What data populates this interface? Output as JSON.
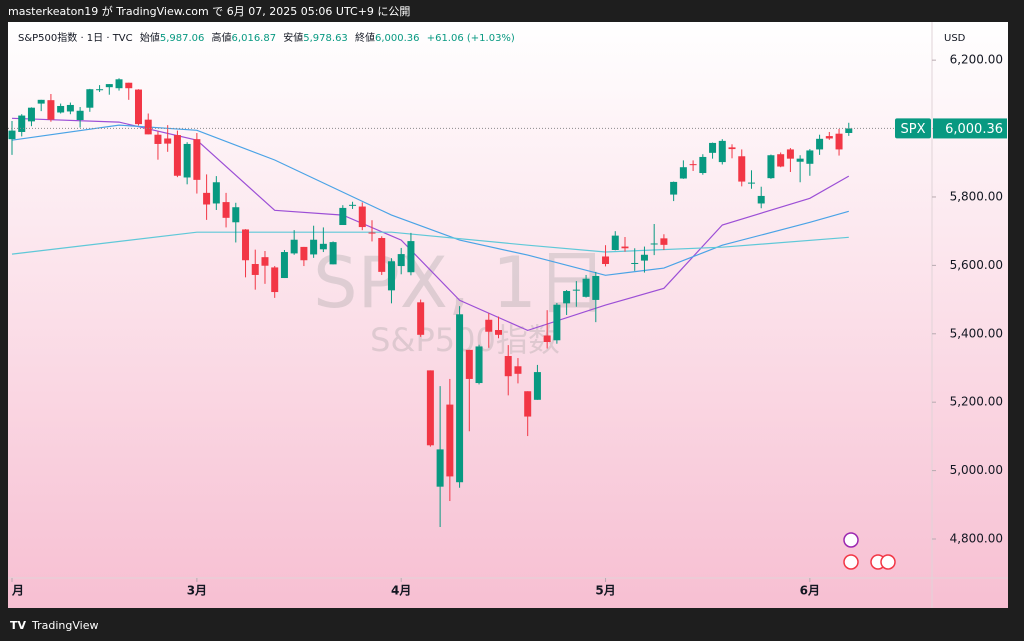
{
  "top_bar": "masterkeaton19 が TradingView.com で 6月 07, 2025 05:06 UTC+9 に公開",
  "footer": "TradingView",
  "chart_data": {
    "type": "candlestick",
    "currency": "USD",
    "watermark_title": "SPX, 1日",
    "watermark_subtitle": "S&P500指数",
    "header": {
      "symbol": "S&P500指数 · 1日 · TVC",
      "open_label": "始値",
      "open_value": "5,987.06",
      "high_label": "高値",
      "high_value": "6,016.87",
      "low_label": "安値",
      "low_value": "5,978.63",
      "close_label": "終値",
      "close_value": "6,000.36",
      "change": "+61.06 (+1.03%)"
    },
    "up_color": "#089981",
    "down_color": "#f23645",
    "open": [
      5969,
      5990,
      6021,
      6073,
      6083,
      6047,
      6050,
      6025,
      6061,
      6115,
      6121,
      6118,
      6134,
      6114,
      6026,
      5982,
      5971,
      5981,
      5857,
      5969,
      5812,
      5781,
      5785,
      5726,
      5705,
      5604,
      5624,
      5594,
      5563,
      5635,
      5654,
      5632,
      5647,
      5603,
      5718,
      5776,
      5772,
      5696,
      5680,
      5527,
      5598,
      5580,
      5492,
      5293,
      4953,
      5193,
      4966,
      5353,
      5256,
      5441,
      5411,
      5335,
      5305,
      5232,
      5207,
      5395,
      5381,
      5489,
      5529,
      5508,
      5499,
      5626,
      5645,
      5655,
      5606,
      5614,
      5663,
      5679,
      5807,
      5854,
      5896,
      5870,
      5929,
      5902,
      5945,
      5919,
      5842,
      5781,
      5855,
      5925,
      5939,
      5903,
      5897,
      5939,
      5978,
      5985,
      5987.06
    ],
    "high": [
      6022,
      6042,
      6062,
      6084,
      6101,
      6073,
      6076,
      6063,
      6116,
      6127,
      6130,
      6147,
      6134,
      6115,
      6044,
      5992,
      6010,
      5994,
      5960,
      5987,
      5866,
      5861,
      5812,
      5783,
      5706,
      5646,
      5642,
      5598,
      5645,
      5703,
      5654,
      5716,
      5711,
      5670,
      5776,
      5786,
      5784,
      5732,
      5685,
      5621,
      5651,
      5695,
      5500,
      5293,
      5247,
      5268,
      5481,
      5353,
      5368,
      5460,
      5450,
      5367,
      5329,
      5232,
      5309,
      5469,
      5490,
      5528,
      5554,
      5572,
      5581,
      5659,
      5700,
      5683,
      5650,
      5655,
      5721,
      5691,
      5845,
      5907,
      5907,
      5925,
      5959,
      5969,
      5954,
      5939,
      5878,
      5830,
      5924,
      5930,
      5943,
      5922,
      5940,
      5982,
      5990,
      5999,
      6016.87
    ],
    "low": [
      5923,
      5977,
      6007,
      6051,
      6020,
      6044,
      6042,
      6003,
      6049,
      6107,
      6099,
      6111,
      6084,
      6009,
      5983,
      5909,
      5932,
      5858,
      5837,
      5810,
      5733,
      5762,
      5711,
      5667,
      5565,
      5529,
      5546,
      5505,
      5563,
      5631,
      5598,
      5622,
      5639,
      5603,
      5718,
      5765,
      5703,
      5670,
      5572,
      5489,
      5574,
      5571,
      5391,
      5070,
      4835,
      4911,
      4950,
      5115,
      5252,
      5359,
      5387,
      5220,
      5255,
      5101,
      5207,
      5357,
      5371,
      5455,
      5479,
      5506,
      5434,
      5597,
      5644,
      5640,
      5584,
      5579,
      5630,
      5645,
      5788,
      5853,
      5876,
      5865,
      5912,
      5895,
      5913,
      5831,
      5824,
      5767,
      5853,
      5887,
      5873,
      5843,
      5862,
      5923,
      5967,
      5921,
      5978.63
    ],
    "close": [
      5994,
      6038,
      6061,
      6084,
      6026,
      6066,
      6069,
      6052,
      6115,
      6115,
      6130,
      6144,
      6118,
      6013,
      5983,
      5955,
      5956,
      5862,
      5955,
      5850,
      5778,
      5843,
      5739,
      5770,
      5615,
      5572,
      5599,
      5522,
      5639,
      5675,
      5615,
      5675,
      5663,
      5668,
      5768,
      5777,
      5712,
      5693,
      5581,
      5612,
      5633,
      5671,
      5397,
      5074,
      5062,
      4983,
      5457,
      5268,
      5363,
      5406,
      5397,
      5276,
      5283,
      5158,
      5288,
      5376,
      5485,
      5525,
      5529,
      5561,
      5569,
      5604,
      5687,
      5650,
      5607,
      5631,
      5664,
      5660,
      5844,
      5887,
      5893,
      5917,
      5958,
      5964,
      5940,
      5845,
      5842,
      5803,
      5922,
      5889,
      5912,
      5912,
      5936,
      5970,
      5971,
      5939,
      6000.36
    ],
    "moving_averages": [
      {
        "color": "#9c4fd6",
        "x": [
          0,
          11,
          19,
          27,
          34,
          40,
          46,
          53,
          61,
          67,
          73,
          82,
          86
        ],
        "values": [
          6030,
          6019,
          5966,
          5761,
          5747,
          5674,
          5498,
          5410,
          5484,
          5533,
          5718,
          5796,
          5861
        ]
      },
      {
        "color": "#4aa3e6",
        "x": [
          0,
          11,
          19,
          27,
          39,
          46,
          53,
          61,
          67,
          73,
          82,
          86
        ],
        "values": [
          5966,
          6010,
          5995,
          5908,
          5747,
          5674,
          5630,
          5571,
          5592,
          5659,
          5726,
          5758
        ]
      },
      {
        "color": "#5fc8d8",
        "x": [
          0,
          19,
          39,
          53,
          61,
          73,
          86
        ],
        "values": [
          5633,
          5697,
          5697,
          5659,
          5639,
          5653,
          5682
        ]
      }
    ],
    "price_line": {
      "label": "SPX",
      "value_label": "6,000.36"
    },
    "ylim": [
      4686,
      6294
    ],
    "yticks": [
      {
        "value": 4800,
        "label": "4,800.00"
      },
      {
        "value": 5000,
        "label": "5,000.00"
      },
      {
        "value": 5200,
        "label": "5,200.00"
      },
      {
        "value": 5400,
        "label": "5,400.00"
      },
      {
        "value": 5600,
        "label": "5,600.00"
      },
      {
        "value": 5800,
        "label": "5,800.00"
      },
      {
        "value": 6000,
        "label": "6,000.00"
      },
      {
        "value": 6200,
        "label": "6,200.00"
      }
    ],
    "xticks": [
      {
        "value": 0,
        "label": "月"
      },
      {
        "value": 19,
        "label": "3月"
      },
      {
        "value": 40,
        "label": "4月"
      },
      {
        "value": 61,
        "label": "5月"
      },
      {
        "value": 82,
        "label": "6月"
      }
    ],
    "grid": false
  }
}
